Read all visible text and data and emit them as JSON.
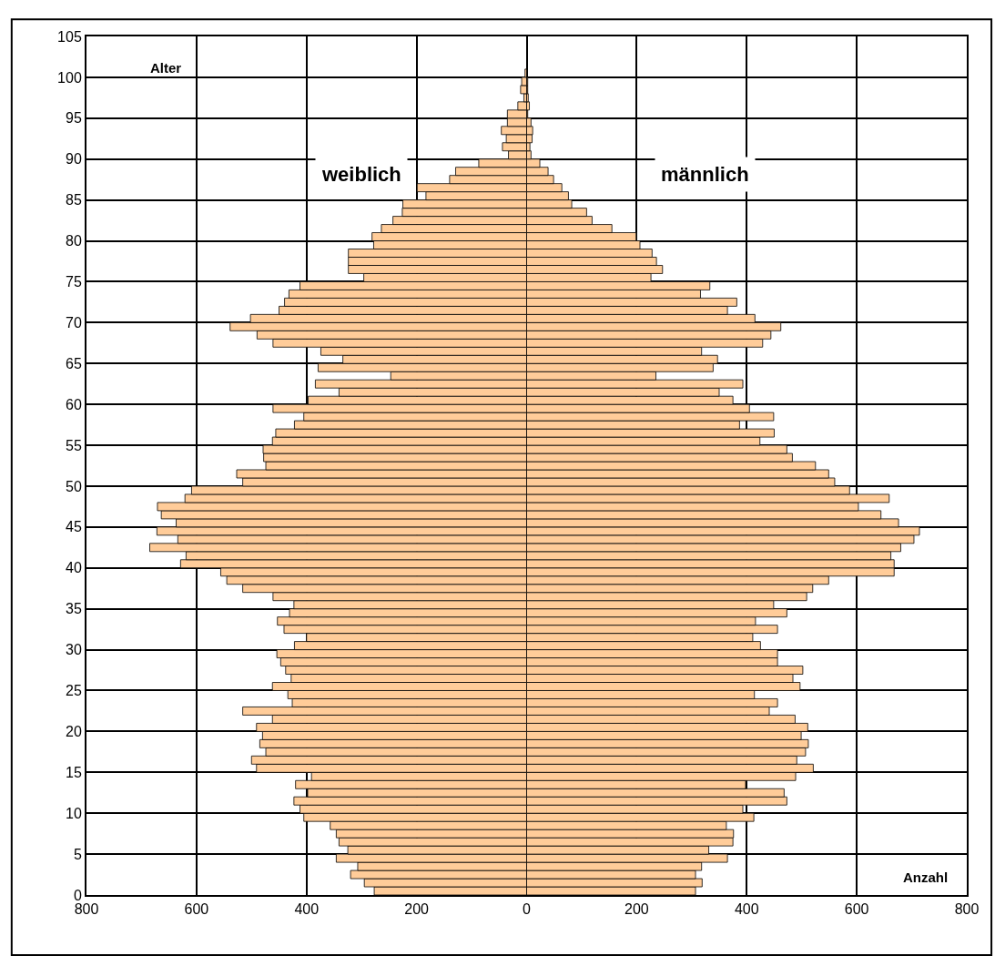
{
  "chart_data": {
    "type": "bar",
    "orientation": "horizontal",
    "ylabel": "Alter",
    "xlabel": "Anzahl",
    "x": [
      0,
      1,
      2,
      3,
      4,
      5,
      6,
      7,
      8,
      9,
      10,
      11,
      12,
      13,
      14,
      15,
      16,
      17,
      18,
      19,
      20,
      21,
      22,
      23,
      24,
      25,
      26,
      27,
      28,
      29,
      30,
      31,
      32,
      33,
      34,
      35,
      36,
      37,
      38,
      39,
      40,
      41,
      42,
      43,
      44,
      45,
      46,
      47,
      48,
      49,
      50,
      51,
      52,
      53,
      54,
      55,
      56,
      57,
      58,
      59,
      60,
      61,
      62,
      63,
      64,
      65,
      66,
      67,
      68,
      69,
      70,
      71,
      72,
      73,
      74,
      75,
      76,
      77,
      78,
      79,
      80,
      81,
      82,
      83,
      84,
      85,
      86,
      87,
      88,
      89,
      90,
      91,
      92,
      93,
      94,
      95,
      96,
      97,
      98,
      99,
      100
    ],
    "series": [
      {
        "name": "weiblich",
        "color": "#ffcc99",
        "values": [
          -277,
          -295,
          -320,
          -307,
          -346,
          -325,
          -341,
          -346,
          -357,
          -405,
          -412,
          -423,
          -398,
          -420,
          -391,
          -491,
          -500,
          -474,
          -485,
          -480,
          -491,
          -462,
          -516,
          -426,
          -434,
          -462,
          -428,
          -438,
          -447,
          -454,
          -422,
          -400,
          -441,
          -453,
          -431,
          -423,
          -461,
          -516,
          -545,
          -556,
          -629,
          -619,
          -685,
          -634,
          -672,
          -637,
          -664,
          -671,
          -621,
          -609,
          -516,
          -527,
          -474,
          -478,
          -479,
          -462,
          -456,
          -422,
          -405,
          -461,
          -397,
          -341,
          -384,
          -247,
          -379,
          -334,
          -374,
          -461,
          -490,
          -539,
          -502,
          -450,
          -440,
          -432,
          -412,
          -296,
          -324,
          -324,
          -324,
          -278,
          -281,
          -264,
          -243,
          -226,
          -225,
          -183,
          -199,
          -140,
          -129,
          -87,
          -33,
          -44,
          -37,
          -46,
          -35,
          -35,
          -16,
          -5,
          -11,
          -9,
          -3
        ]
      },
      {
        "name": "männlich",
        "color": "#ffcc99",
        "values": [
          307,
          319,
          307,
          318,
          365,
          331,
          375,
          376,
          363,
          413,
          393,
          473,
          468,
          398,
          489,
          521,
          491,
          507,
          512,
          499,
          511,
          488,
          441,
          456,
          414,
          497,
          484,
          502,
          456,
          456,
          425,
          411,
          456,
          416,
          473,
          449,
          509,
          520,
          549,
          668,
          668,
          662,
          680,
          704,
          714,
          676,
          644,
          603,
          659,
          587,
          560,
          549,
          525,
          483,
          473,
          424,
          450,
          387,
          449,
          405,
          375,
          350,
          393,
          235,
          339,
          347,
          318,
          429,
          444,
          462,
          415,
          365,
          382,
          316,
          333,
          226,
          247,
          236,
          228,
          206,
          199,
          155,
          119,
          109,
          82,
          76,
          64,
          49,
          39,
          24,
          8,
          6,
          10,
          11,
          8,
          2,
          5,
          3,
          2,
          2,
          null
        ]
      }
    ],
    "xlim": [
      -800,
      800
    ],
    "xticks": [
      {
        "value": -800,
        "label": "800"
      },
      {
        "value": -600,
        "label": "600"
      },
      {
        "value": -400,
        "label": "400"
      },
      {
        "value": -200,
        "label": "200"
      },
      0,
      200,
      400,
      600,
      800
    ],
    "ylim": [
      0,
      105
    ],
    "yticks": [
      0,
      5,
      10,
      15,
      20,
      25,
      30,
      35,
      40,
      45,
      50,
      55,
      60,
      65,
      70,
      75,
      80,
      85,
      90,
      95,
      100,
      105
    ],
    "stacked": true,
    "grid": true,
    "legend": false
  }
}
